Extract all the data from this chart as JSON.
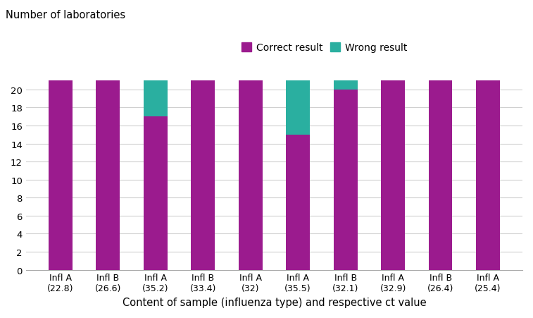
{
  "categories": [
    "Infl A\n(22.8)",
    "Infl B\n(26.6)",
    "Infl A\n(35.2)",
    "Infl B\n(33.4)",
    "Infl A\n(32)",
    "Infl A\n(35.5)",
    "Infl B\n(32.1)",
    "Infl A\n(32.9)",
    "Infl B\n(26.4)",
    "Infl A\n(25.4)"
  ],
  "correct": [
    21,
    21,
    17,
    21,
    21,
    15,
    20,
    21,
    21,
    21
  ],
  "wrong": [
    0,
    0,
    4,
    0,
    0,
    6,
    1,
    0,
    0,
    0
  ],
  "correct_color": "#9B1B8E",
  "wrong_color": "#2AAFA0",
  "top_left_label": "Number of laboratories",
  "xlabel": "Content of sample (influenza type) and respective ct value",
  "ylim": [
    0,
    22
  ],
  "yticks": [
    0,
    2,
    4,
    6,
    8,
    10,
    12,
    14,
    16,
    18,
    20
  ],
  "legend_correct": "Correct result",
  "legend_wrong": "Wrong result",
  "background_color": "#FFFFFF",
  "grid_color": "#D0D0D0",
  "bar_width": 0.5
}
